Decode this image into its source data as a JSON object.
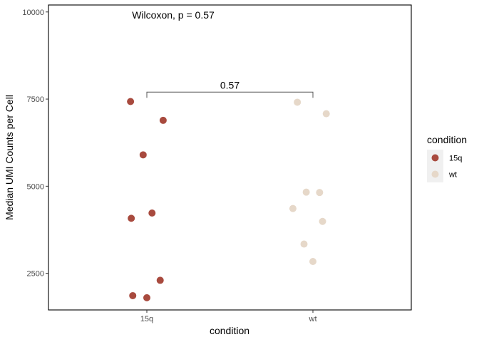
{
  "chart_data": {
    "type": "scatter",
    "subtitle_annotation": "Wilcoxon, p = 0.57",
    "bracket_label": "0.57",
    "xlabel": "condition",
    "ylabel": "Median UMI Counts per Cell",
    "categories": [
      "15q",
      "wt"
    ],
    "ylim": [
      1450,
      10200
    ],
    "yticks": [
      2500,
      5000,
      7500,
      10000
    ],
    "grid": false,
    "legend": {
      "title": "condition",
      "placement": "right",
      "entries": [
        "15q",
        "wt"
      ]
    },
    "colors": {
      "15q": "#a84a3e",
      "wt": "#e6d8c9"
    },
    "series": [
      {
        "name": "15q",
        "points": [
          {
            "x": "15q",
            "jitter": -0.22,
            "y": 7430
          },
          {
            "x": "15q",
            "jitter": 0.22,
            "y": 6890
          },
          {
            "x": "15q",
            "jitter": -0.05,
            "y": 5900
          },
          {
            "x": "15q",
            "jitter": 0.07,
            "y": 4230
          },
          {
            "x": "15q",
            "jitter": -0.21,
            "y": 4080
          },
          {
            "x": "15q",
            "jitter": 0.18,
            "y": 2300
          },
          {
            "x": "15q",
            "jitter": -0.19,
            "y": 1860
          },
          {
            "x": "15q",
            "jitter": 0.0,
            "y": 1800
          }
        ]
      },
      {
        "name": "wt",
        "points": [
          {
            "x": "wt",
            "jitter": -0.21,
            "y": 7410
          },
          {
            "x": "wt",
            "jitter": 0.18,
            "y": 7080
          },
          {
            "x": "wt",
            "jitter": -0.09,
            "y": 4830
          },
          {
            "x": "wt",
            "jitter": 0.09,
            "y": 4820
          },
          {
            "x": "wt",
            "jitter": -0.27,
            "y": 4360
          },
          {
            "x": "wt",
            "jitter": 0.13,
            "y": 3990
          },
          {
            "x": "wt",
            "jitter": -0.12,
            "y": 3340
          },
          {
            "x": "wt",
            "jitter": 0.0,
            "y": 2840
          }
        ]
      }
    ],
    "bracket": {
      "from": "15q",
      "to": "wt",
      "y": 7700
    }
  }
}
